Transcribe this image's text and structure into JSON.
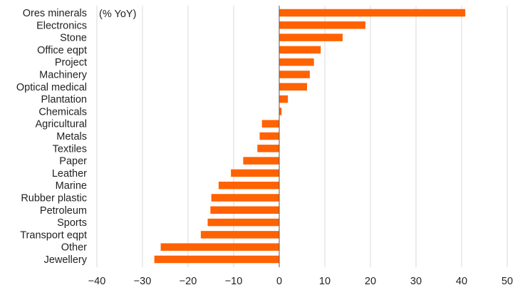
{
  "chart_data": {
    "type": "bar",
    "orientation": "horizontal",
    "unit_label": "(% YoY)",
    "categories": [
      "Ores minerals",
      "Electronics",
      "Stone",
      "Office eqpt",
      "Project",
      "Machinery",
      "Optical medical",
      "Plantation",
      "Chemicals",
      "Agricultural",
      "Metals",
      "Textiles",
      "Paper",
      "Leather",
      "Marine",
      "Rubber plastic",
      "Petroleum",
      "Sports",
      "Transport eqpt",
      "Other",
      "Jewellery"
    ],
    "values": [
      40.8,
      18.9,
      13.9,
      9.1,
      7.6,
      6.7,
      6.1,
      1.9,
      0.5,
      -3.8,
      -4.3,
      -4.8,
      -7.9,
      -10.6,
      -13.3,
      -14.9,
      -15.1,
      -15.7,
      -17.2,
      -26.0,
      -27.4
    ],
    "xlim": [
      -40,
      50
    ],
    "xticks": [
      -40,
      -30,
      -20,
      -10,
      0,
      10,
      20,
      30,
      40,
      50
    ],
    "grid": true,
    "bar_color": "#FF6200",
    "legend": "none"
  }
}
